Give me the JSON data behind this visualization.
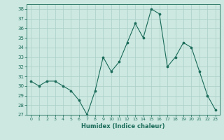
{
  "x": [
    0,
    1,
    2,
    3,
    4,
    5,
    6,
    7,
    8,
    9,
    10,
    11,
    12,
    13,
    14,
    15,
    16,
    17,
    18,
    19,
    20,
    21,
    22,
    23
  ],
  "y": [
    30.5,
    30.0,
    30.5,
    30.5,
    30.0,
    29.5,
    28.5,
    27.0,
    29.5,
    33.0,
    31.5,
    32.5,
    34.5,
    36.5,
    35.0,
    38.0,
    37.5,
    32.0,
    33.0,
    34.5,
    34.0,
    31.5,
    29.0,
    27.5
  ],
  "xlabel": "Humidex (Indice chaleur)",
  "xlim": [
    -0.5,
    23.5
  ],
  "ylim": [
    27,
    38.5
  ],
  "yticks": [
    27,
    28,
    29,
    30,
    31,
    32,
    33,
    34,
    35,
    36,
    37,
    38
  ],
  "xtick_labels": [
    "0",
    "1",
    "2",
    "3",
    "4",
    "5",
    "6",
    "7",
    "8",
    "9",
    "10",
    "11",
    "12",
    "13",
    "14",
    "15",
    "16",
    "17",
    "18",
    "19",
    "20",
    "21",
    "22",
    "23"
  ],
  "line_color": "#1a6b5a",
  "marker_color": "#1a6b5a",
  "bg_color": "#cce8e0",
  "grid_color": "#aacfc7",
  "xlabel_color": "#1a6b5a",
  "tick_color": "#1a6b5a",
  "spine_color": "#1a6b5a"
}
